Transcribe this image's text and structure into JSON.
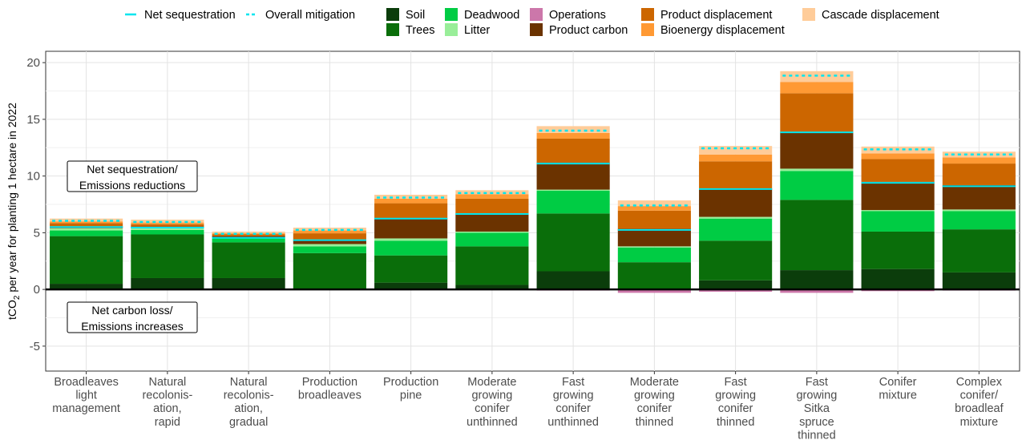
{
  "chart_data": {
    "type": "bar",
    "stacked": true,
    "ylabel": "tCO2 per year for planting 1 hectare in 2022",
    "ylabel_main": "tCO",
    "ylabel_sub": "2",
    "ylabel_rest": " per year for planting 1 hectare in 2022",
    "ylim": [
      -7.2,
      21
    ],
    "yticks": [
      -5,
      0,
      5,
      10,
      15,
      20
    ],
    "grid": true,
    "legend_position": "top",
    "categories": [
      [
        "Broadleaves",
        "light",
        "management"
      ],
      [
        "Natural",
        "recolonis-",
        "ation,",
        "rapid"
      ],
      [
        "Natural",
        "recolonis-",
        "ation,",
        "gradual"
      ],
      [
        "Production",
        "broadleaves"
      ],
      [
        "Production",
        "pine"
      ],
      [
        "Moderate",
        "growing",
        "conifer",
        "unthinned"
      ],
      [
        "Fast",
        "growing",
        "conifer",
        "unthinned"
      ],
      [
        "Moderate",
        "growing",
        "conifer",
        "thinned"
      ],
      [
        "Fast",
        "growing",
        "conifer",
        "thinned"
      ],
      [
        "Fast",
        "growing",
        "Sitka",
        "spruce",
        "thinned"
      ],
      [
        "Conifer",
        "mixture"
      ],
      [
        "Complex",
        "conifer/",
        "broadleaf",
        "mixture"
      ]
    ],
    "series": [
      {
        "name": "Soil",
        "color": "#0b3d0b",
        "values": [
          0.5,
          1.0,
          1.0,
          0.0,
          0.6,
          0.4,
          1.6,
          0.0,
          0.8,
          1.7,
          1.8,
          1.5
        ]
      },
      {
        "name": "Trees",
        "color": "#0a6e0a",
        "values": [
          4.2,
          3.85,
          3.15,
          3.2,
          2.4,
          3.4,
          5.1,
          2.4,
          3.5,
          6.2,
          3.3,
          3.8
        ]
      },
      {
        "name": "Deadwood",
        "color": "#00cc44",
        "values": [
          0.5,
          0.4,
          0.35,
          0.6,
          1.3,
          1.2,
          2.0,
          1.3,
          1.95,
          2.55,
          1.8,
          1.6
        ]
      },
      {
        "name": "Litter",
        "color": "#99ee99",
        "values": [
          0.2,
          0.15,
          0.1,
          0.2,
          0.2,
          0.1,
          0.1,
          0.1,
          0.15,
          0.2,
          0.1,
          0.15
        ]
      },
      {
        "name": "Operations",
        "color": "#cc77aa",
        "values": [
          -0.05,
          -0.05,
          -0.05,
          -0.05,
          -0.05,
          -0.05,
          -0.1,
          -0.3,
          -0.2,
          -0.3,
          -0.15,
          -0.1
        ]
      },
      {
        "name": "Product carbon",
        "color": "#6b3300",
        "values": [
          0.15,
          0.15,
          0.1,
          0.35,
          1.8,
          1.6,
          2.4,
          1.55,
          2.5,
          3.25,
          2.5,
          2.15
        ]
      },
      {
        "name": "Product displacement",
        "color": "#cc6600",
        "values": [
          0.3,
          0.2,
          0.15,
          0.6,
          1.3,
          1.3,
          2.1,
          1.6,
          2.4,
          3.4,
          2.0,
          1.9
        ]
      },
      {
        "name": "Bioenergy displacement",
        "color": "#ff9933",
        "values": [
          0.15,
          0.15,
          0.1,
          0.25,
          0.4,
          0.4,
          0.5,
          0.4,
          0.6,
          1.0,
          0.5,
          0.55
        ]
      },
      {
        "name": "Cascade displacement",
        "color": "#ffcc99",
        "values": [
          0.25,
          0.25,
          0.15,
          0.25,
          0.35,
          0.35,
          0.6,
          0.5,
          0.75,
          0.95,
          0.6,
          0.5
        ]
      }
    ],
    "net_sequestration": {
      "name": "Net sequestration",
      "color": "#00e5ee",
      "dashed": false,
      "values": [
        5.5,
        5.45,
        4.55,
        4.35,
        6.25,
        6.65,
        11.1,
        5.25,
        8.85,
        13.85,
        9.4,
        9.1
      ]
    },
    "overall_mitigation": {
      "name": "Overall mitigation",
      "color": "#00e5ee",
      "dashed": true,
      "values": [
        6.05,
        5.95,
        4.9,
        5.25,
        8.1,
        8.5,
        14.0,
        7.4,
        12.45,
        18.85,
        12.35,
        11.9
      ]
    },
    "annotations": {
      "upper": [
        "Net sequestration/",
        "Emissions reductions"
      ],
      "lower": [
        "Net carbon loss/",
        "Emissions increases"
      ]
    }
  }
}
